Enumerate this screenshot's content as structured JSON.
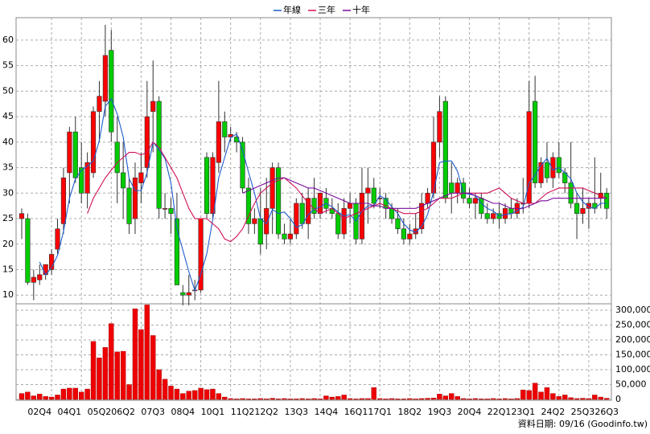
{
  "chart_data": [
    {
      "type": "candlestick",
      "up_color": "#ff0000",
      "down_color": "#00cc00",
      "open": [
        25,
        25,
        12.5,
        13,
        14,
        15,
        19,
        24,
        34,
        42,
        35,
        30,
        34,
        46,
        48,
        58,
        40,
        34,
        31,
        25,
        32,
        35,
        46,
        48,
        27,
        27,
        25,
        10.5,
        10,
        11,
        11,
        37,
        26,
        36,
        44,
        41,
        41,
        40,
        31,
        24,
        25,
        22,
        27,
        35,
        22,
        21,
        22,
        28,
        24,
        29,
        26,
        29,
        27,
        26,
        22,
        27,
        28,
        21,
        30,
        31,
        29,
        29,
        27,
        25,
        23,
        21,
        22,
        23,
        28,
        30,
        40,
        48,
        32,
        30,
        32,
        29,
        28,
        29,
        26,
        25,
        26,
        25,
        27,
        26,
        28,
        28,
        48,
        32,
        36,
        33,
        37,
        34,
        32,
        28,
        26,
        27,
        28,
        29,
        30
      ],
      "high": [
        27,
        26,
        15,
        16,
        16,
        19,
        25,
        35,
        43,
        45,
        40,
        38,
        47,
        52,
        63,
        62,
        45,
        40,
        33,
        36,
        38,
        52,
        56,
        49,
        30,
        29,
        30,
        12,
        14,
        13,
        25,
        38,
        38,
        52,
        46,
        43,
        42,
        41,
        33,
        27,
        31,
        33,
        36,
        36,
        24,
        25,
        29,
        30,
        31,
        33,
        30,
        31,
        29,
        28,
        29,
        30,
        29,
        35,
        35,
        33,
        31,
        30,
        28,
        27,
        25,
        24,
        26,
        30,
        31,
        45,
        49,
        49,
        36,
        33,
        33,
        31,
        30,
        30,
        28,
        27,
        28,
        28,
        29,
        29,
        33,
        52,
        53,
        37,
        40,
        38,
        40,
        35,
        40,
        30,
        31,
        29,
        37,
        34,
        31
      ],
      "low": [
        21,
        12,
        9,
        12,
        13,
        14,
        18,
        22,
        28,
        32,
        28,
        27,
        33,
        40,
        45,
        40,
        28,
        25,
        22,
        22,
        28,
        33,
        38,
        25,
        25,
        22,
        12,
        8,
        8,
        9,
        10.5,
        25,
        25,
        34,
        38,
        40,
        38,
        30,
        22,
        22,
        18,
        19,
        22,
        21,
        20,
        20,
        21,
        23,
        21,
        25,
        25,
        26,
        25,
        21,
        21,
        24,
        20,
        20,
        24,
        27,
        27,
        25,
        24,
        22,
        20,
        20,
        21,
        22,
        27,
        29,
        37,
        28,
        26,
        28,
        28,
        27,
        25,
        25,
        24,
        24,
        23,
        24,
        25,
        25,
        26,
        27,
        31,
        31,
        32,
        31,
        33,
        30,
        27,
        21,
        24,
        23,
        26,
        27,
        25
      ],
      "close": [
        26,
        12.5,
        13.5,
        14,
        16,
        18,
        23,
        33,
        42,
        33,
        30,
        36,
        46,
        49,
        57,
        42,
        34,
        31,
        24,
        33,
        34,
        45,
        48,
        27,
        27,
        26,
        12,
        10,
        10.5,
        11,
        25,
        26,
        37,
        44,
        41,
        41.5,
        40,
        31,
        24,
        25,
        20,
        27,
        35,
        22,
        21,
        22,
        28,
        24,
        29,
        26,
        30,
        27,
        26,
        22,
        27,
        28,
        21,
        30,
        31,
        28,
        29,
        27,
        25,
        23,
        21,
        22,
        23,
        28,
        30,
        40,
        46,
        29,
        30,
        32,
        29,
        28,
        29,
        26,
        25,
        26,
        25,
        27,
        26,
        28,
        28,
        46,
        32,
        36,
        33,
        37,
        34,
        32,
        28,
        26,
        27,
        28,
        27,
        30,
        27
      ],
      "series": [
        {
          "name": "年線",
          "color": "#1e5ccc",
          "values": [
            null,
            null,
            null,
            16.5,
            14,
            15.4,
            17.8,
            22.5,
            29,
            32.8,
            34.5,
            35.3,
            36.3,
            40.3,
            47,
            48.5,
            45.5,
            41,
            32.8,
            30.5,
            30.5,
            34,
            40,
            38.5,
            36.8,
            32,
            23,
            18.8,
            14.6,
            10.9,
            14.1,
            18.1,
            24.8,
            33,
            37,
            40.9,
            41.6,
            38.4,
            34.1,
            30,
            25,
            24,
            26.8,
            26,
            26.3,
            25,
            23.3,
            23.8,
            25.8,
            26.8,
            27.3,
            28,
            27.3,
            26.3,
            25.5,
            25.8,
            24.5,
            26.5,
            27.5,
            27.5,
            29.5,
            28.8,
            27.3,
            26,
            24,
            22.8,
            22.3,
            23.5,
            25.8,
            30.3,
            36,
            36.3,
            36.3,
            34.3,
            30,
            29.8,
            29.5,
            28,
            27,
            26.5,
            25.5,
            25.8,
            26,
            26.5,
            27.3,
            32,
            33.5,
            35.5,
            36.8,
            34.5,
            35,
            34,
            32.8,
            30,
            28.3,
            27.3,
            27,
            28,
            28
          ]
        },
        {
          "name": "三年",
          "color": "#d0105a",
          "values": [
            null,
            null,
            null,
            null,
            null,
            null,
            null,
            null,
            null,
            null,
            null,
            26,
            29,
            31,
            33,
            34.5,
            36,
            37,
            38,
            38,
            37.5,
            38,
            40,
            39,
            37,
            35,
            33,
            30,
            27,
            25,
            25,
            25,
            24,
            23,
            21,
            20.5,
            21.5,
            23,
            25.5,
            28,
            30,
            31,
            32,
            32.5,
            33,
            32,
            31,
            29.5,
            28,
            27,
            26,
            26.5,
            27,
            26,
            25,
            25.5,
            26,
            26.5,
            27,
            27.5,
            28,
            27.5,
            27,
            26.5,
            26,
            26,
            26,
            26.5,
            27,
            28,
            29,
            29,
            29,
            29.5,
            30,
            30,
            30,
            30,
            30,
            30.5,
            31,
            30,
            29,
            28.5,
            28,
            28,
            28,
            29,
            30,
            30.5,
            31,
            31,
            31,
            31,
            31,
            30.5,
            30,
            29.5,
            29
          ]
        },
        {
          "name": "十年",
          "color": "#7a0a9c",
          "values": [
            null,
            null,
            null,
            null,
            null,
            null,
            null,
            null,
            null,
            null,
            null,
            null,
            null,
            null,
            null,
            null,
            null,
            null,
            null,
            null,
            null,
            null,
            null,
            null,
            null,
            null,
            null,
            null,
            null,
            null,
            null,
            null,
            null,
            null,
            null,
            null,
            null,
            30,
            30.5,
            31,
            31.5,
            32,
            32.5,
            33,
            33,
            32.5,
            32,
            31.5,
            31,
            31,
            30.5,
            30,
            29.5,
            29,
            28.5,
            28,
            28,
            28,
            28,
            27.5,
            27.5,
            27,
            27,
            27,
            27,
            27,
            27,
            27.5,
            28,
            28.5,
            29,
            29.5,
            30,
            30,
            30,
            30,
            29.5,
            29,
            28.5,
            28,
            28,
            27.5,
            27,
            27,
            27,
            27.5,
            28,
            28.5,
            28.5,
            29,
            29,
            29,
            29,
            29,
            29,
            29,
            29,
            29,
            29
          ]
        }
      ],
      "ylim": [
        8.3,
        64.4
      ],
      "yticks": [
        10,
        15,
        20,
        25,
        30,
        35,
        40,
        45,
        50,
        55,
        60
      ],
      "grid": true,
      "legend": "top"
    },
    {
      "type": "bar",
      "color": "#ee0000",
      "categories": [
        null,
        null,
        null,
        "02Q4",
        null,
        null,
        null,
        null,
        "04Q1",
        null,
        null,
        null,
        null,
        "05Q2",
        null,
        null,
        null,
        "06Q2",
        null,
        null,
        null,
        null,
        "07Q3",
        null,
        null,
        null,
        null,
        "08Q4",
        null,
        null,
        null,
        null,
        "10Q1",
        null,
        null,
        null,
        null,
        "11Q2",
        null,
        null,
        null,
        "12Q2",
        null,
        null,
        null,
        null,
        "13Q3",
        null,
        null,
        null,
        null,
        "14Q4",
        null,
        null,
        null,
        null,
        "16Q1",
        null,
        null,
        null,
        "17Q1",
        null,
        null,
        null,
        null,
        "18Q2",
        null,
        null,
        null,
        null,
        "19Q3",
        null,
        null,
        null,
        null,
        "20Q4",
        null,
        null,
        null,
        null,
        "22Q1",
        null,
        null,
        null,
        "23Q1",
        null,
        null,
        null,
        null,
        "24Q2",
        null,
        null,
        null,
        null,
        "25Q3",
        null,
        null,
        null,
        "26Q3"
      ],
      "values": [
        20000,
        25000,
        12000,
        18000,
        10000,
        8000,
        15000,
        35000,
        38000,
        38000,
        25000,
        35000,
        195000,
        140000,
        175000,
        255000,
        160000,
        162000,
        50000,
        305000,
        235000,
        318000,
        215000,
        100000,
        68000,
        45000,
        35000,
        20000,
        28000,
        30000,
        38000,
        33000,
        35000,
        20000,
        8000,
        3000,
        2000,
        3000,
        2000,
        2000,
        3000,
        2000,
        4000,
        2000,
        3000,
        2000,
        2000,
        3000,
        2000,
        3000,
        2000,
        12000,
        8000,
        10000,
        15000,
        3000,
        2000,
        3000,
        3000,
        40000,
        3000,
        2000,
        3000,
        2000,
        2000,
        3000,
        2000,
        3000,
        4000,
        5000,
        18000,
        12000,
        20000,
        10000,
        3000,
        2000,
        3000,
        2000,
        2000,
        3000,
        2000,
        3000,
        2000,
        3000,
        32000,
        30000,
        55000,
        25000,
        40000,
        20000,
        10000,
        15000,
        6000,
        3000,
        4000,
        3000,
        15000,
        8000,
        4000
      ],
      "ylim": [
        0,
        321600
      ],
      "yticks": [
        0,
        {
          "value": 50000,
          "label": "50,000"
        },
        {
          "value": 100000,
          "label": "100,000"
        },
        {
          "value": 150000,
          "label": "150,000"
        },
        {
          "value": 200000,
          "label": "200,000"
        },
        {
          "value": 250000,
          "label": "250,000"
        },
        {
          "value": 300000,
          "label": "300,000"
        }
      ],
      "grid": true,
      "footer": "資料日期: 09/16  (Goodinfo.tw)"
    }
  ]
}
